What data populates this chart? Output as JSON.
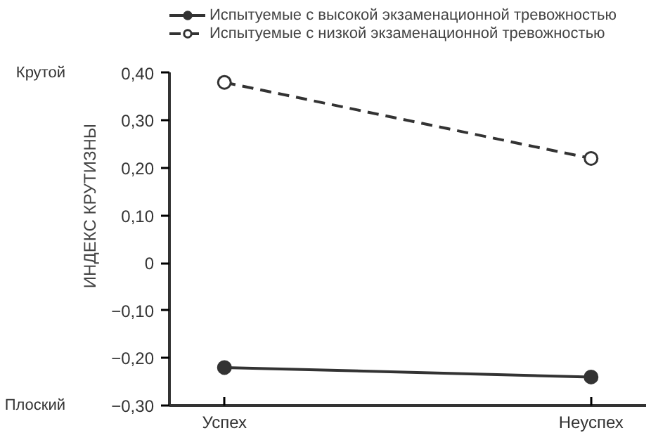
{
  "chart_data": {
    "type": "line",
    "ylabel": "ИНДЕКС КРУТИЗНЫ",
    "categories": [
      "Успех",
      "Неуспех"
    ],
    "series": [
      {
        "name": "Испытуемые с высокой экзаменационной тревожностью",
        "color": "#333333",
        "values": [
          -0.22,
          -0.24
        ],
        "line_style": "solid"
      },
      {
        "name": "Испытуемые с низкой экзаменационной тревожностью",
        "color": "#333333",
        "values": [
          0.38,
          0.22
        ],
        "line_style": "dashed"
      }
    ],
    "ylim": [
      -0.3,
      0.4
    ],
    "yticks": [
      {
        "value": 0.4,
        "label": "0,40"
      },
      {
        "value": 0.3,
        "label": "0,30"
      },
      {
        "value": 0.2,
        "label": "0,20"
      },
      {
        "value": 0.1,
        "label": "0,10"
      },
      0,
      {
        "value": -0.1,
        "label": "−0,10"
      },
      {
        "value": -0.2,
        "label": "−0,20"
      },
      {
        "value": -0.3,
        "label": "−0,30"
      }
    ],
    "annotations": [
      "Крутой",
      "Плоский"
    ],
    "marker": "circle",
    "legend": "top",
    "grid": false
  }
}
